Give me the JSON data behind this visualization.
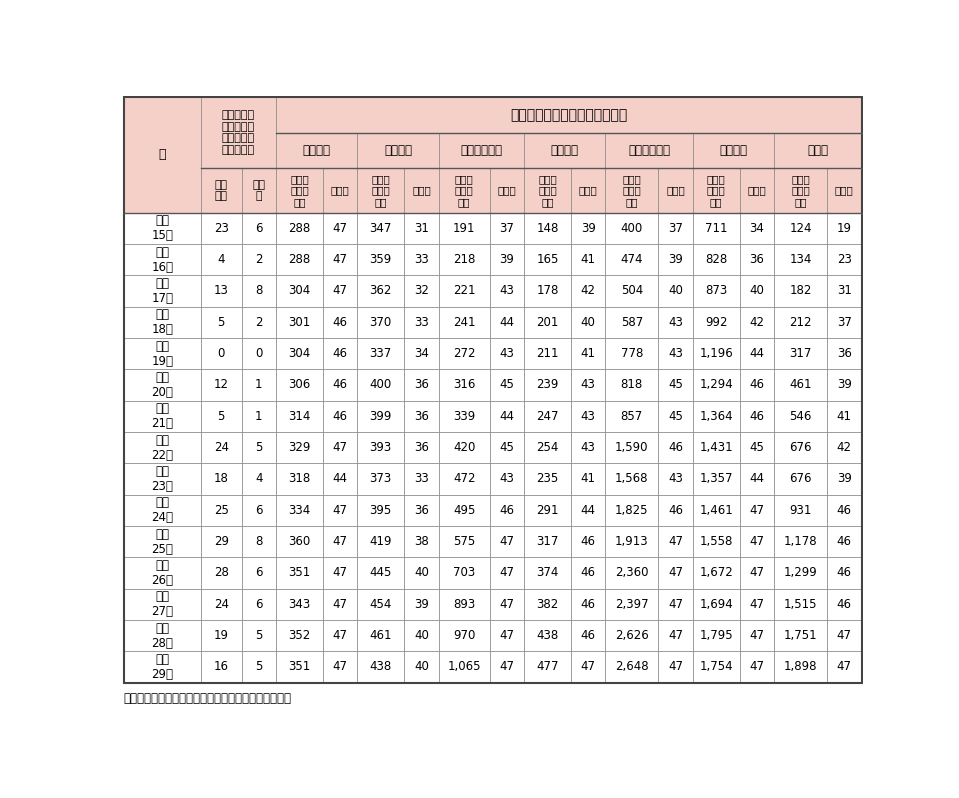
{
  "title": "民間機関等との応援協定の状況",
  "source": "出典：消防庁「地方防災行政の現況」より内閣府作成",
  "years": [
    "平成\n15年",
    "平成\n16年",
    "平成\n17年",
    "平成\n18年",
    "平成\n19年",
    "平成\n20年",
    "平成\n21年",
    "平成\n22年",
    "平成\n23年",
    "平成\n24年",
    "平成\n25年",
    "平成\n26年",
    "平成\n27年",
    "平成\n28年",
    "平成\n29年"
  ],
  "data": [
    [
      23,
      6,
      288,
      47,
      347,
      31,
      191,
      37,
      148,
      39,
      400,
      37,
      711,
      34,
      124,
      19
    ],
    [
      4,
      2,
      288,
      47,
      359,
      33,
      218,
      39,
      165,
      41,
      474,
      39,
      828,
      36,
      134,
      23
    ],
    [
      13,
      8,
      304,
      47,
      362,
      32,
      221,
      43,
      178,
      42,
      504,
      40,
      873,
      40,
      182,
      31
    ],
    [
      5,
      2,
      301,
      46,
      370,
      33,
      241,
      44,
      201,
      40,
      587,
      43,
      992,
      42,
      212,
      37
    ],
    [
      0,
      0,
      304,
      46,
      337,
      34,
      272,
      43,
      211,
      41,
      778,
      43,
      1196,
      44,
      317,
      36
    ],
    [
      12,
      1,
      306,
      46,
      400,
      36,
      316,
      45,
      239,
      43,
      818,
      45,
      1294,
      46,
      461,
      39
    ],
    [
      5,
      1,
      314,
      46,
      399,
      36,
      339,
      44,
      247,
      43,
      857,
      45,
      1364,
      46,
      546,
      41
    ],
    [
      24,
      5,
      329,
      47,
      393,
      36,
      420,
      45,
      254,
      43,
      1590,
      46,
      1431,
      45,
      676,
      42
    ],
    [
      18,
      4,
      318,
      44,
      373,
      33,
      472,
      43,
      235,
      41,
      1568,
      43,
      1357,
      44,
      676,
      39
    ],
    [
      25,
      6,
      334,
      47,
      395,
      36,
      495,
      46,
      291,
      44,
      1825,
      46,
      1461,
      47,
      931,
      46
    ],
    [
      29,
      8,
      360,
      47,
      419,
      38,
      575,
      47,
      317,
      46,
      1913,
      47,
      1558,
      47,
      1178,
      46
    ],
    [
      28,
      6,
      351,
      47,
      445,
      40,
      703,
      47,
      374,
      46,
      2360,
      47,
      1672,
      47,
      1299,
      46
    ],
    [
      24,
      6,
      343,
      47,
      454,
      39,
      893,
      47,
      382,
      46,
      2397,
      47,
      1694,
      47,
      1515,
      46
    ],
    [
      19,
      5,
      352,
      47,
      461,
      40,
      970,
      47,
      438,
      46,
      2626,
      47,
      1795,
      47,
      1751,
      47
    ],
    [
      16,
      5,
      351,
      47,
      438,
      40,
      1065,
      47,
      477,
      47,
      2648,
      47,
      1754,
      47,
      1898,
      47
    ]
  ],
  "header_bg": "#f5d0c8",
  "white": "#ffffff",
  "border_color": "#888888",
  "outer_border_color": "#555555"
}
